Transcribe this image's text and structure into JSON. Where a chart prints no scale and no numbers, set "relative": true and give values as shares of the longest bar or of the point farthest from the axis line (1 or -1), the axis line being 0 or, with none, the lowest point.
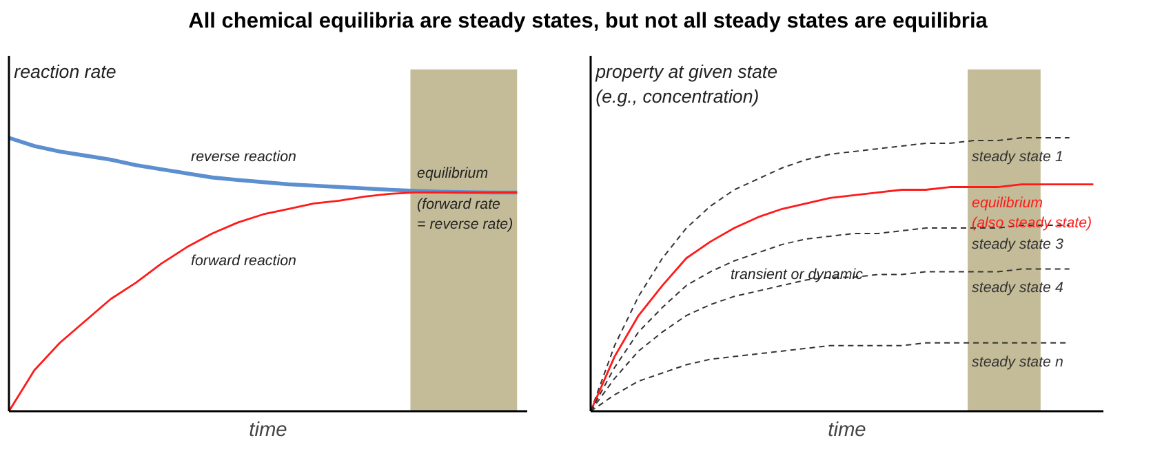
{
  "chart_data": [
    {
      "type": "line",
      "title": "All chemical equilibria are steady states, but not all steady states are equilibria",
      "xlabel": "time",
      "ylabel": "reaction rate",
      "relative": true,
      "tick_labels": false,
      "categories": [
        null,
        null,
        null,
        null,
        null,
        null,
        null,
        null,
        null,
        null,
        null,
        null,
        null,
        null,
        null,
        null,
        null,
        null,
        null,
        null,
        null
      ],
      "series": [
        {
          "color": "#5b8fd0",
          "line_style": "solid",
          "values": [
            1.0,
            0.97,
            0.95,
            0.935,
            0.92,
            0.9,
            0.885,
            0.87,
            0.855,
            0.846,
            0.838,
            0.83,
            0.825,
            0.82,
            0.815,
            0.81,
            0.806,
            0.803,
            0.801,
            0.8,
            0.8
          ]
        },
        {
          "color": "#ff1a1a",
          "line_style": "solid",
          "values": [
            0,
            0.15,
            0.25,
            0.33,
            0.41,
            0.47,
            0.54,
            0.6,
            0.65,
            0.69,
            0.72,
            0.74,
            0.76,
            0.77,
            0.785,
            0.795,
            0.8,
            0.8,
            0.8,
            0.8,
            0.8
          ]
        }
      ],
      "annotations": [
        "reverse reaction",
        "forward reaction",
        "equilibrium",
        "(forward rate\n= reverse rate)"
      ]
    },
    {
      "type": "line",
      "xlabel": "time",
      "ylabel": "property at given state\n(e.g., concentration)",
      "relative": true,
      "tick_labels": false,
      "categories": [
        null,
        null,
        null,
        null,
        null,
        null,
        null,
        null,
        null,
        null,
        null,
        null,
        null,
        null,
        null,
        null,
        null,
        null,
        null,
        null,
        null,
        null
      ],
      "series": [
        {
          "name": "steady state 1",
          "color": "#333333",
          "line_style": "dashed",
          "values": [
            0,
            0.24,
            0.42,
            0.56,
            0.67,
            0.75,
            0.81,
            0.85,
            0.89,
            0.92,
            0.94,
            0.95,
            0.96,
            0.97,
            0.98,
            0.98,
            0.99,
            0.99,
            1.0,
            1.0,
            1.0,
            null
          ]
        },
        {
          "name": "equilibrium\n(also steady state)",
          "color": "#ff1a1a",
          "line_style": "solid",
          "values": [
            0,
            0.2,
            0.35,
            0.46,
            0.56,
            0.62,
            0.67,
            0.71,
            0.74,
            0.76,
            0.78,
            0.79,
            0.8,
            0.81,
            0.81,
            0.82,
            0.82,
            0.82,
            0.83,
            0.83,
            0.83,
            0.83
          ]
        },
        {
          "name": "steady state 3",
          "color": "#333333",
          "line_style": "dashed",
          "values": [
            0,
            0.16,
            0.29,
            0.38,
            0.46,
            0.51,
            0.55,
            0.58,
            0.61,
            0.63,
            0.64,
            0.65,
            0.65,
            0.66,
            0.67,
            0.67,
            0.67,
            0.67,
            0.68,
            0.68,
            0.68,
            null
          ]
        },
        {
          "name": "steady state 4",
          "color": "#333333",
          "line_style": "dashed",
          "values": [
            0,
            0.12,
            0.22,
            0.29,
            0.35,
            0.39,
            0.42,
            0.44,
            0.46,
            0.48,
            0.49,
            0.49,
            0.5,
            0.5,
            0.51,
            0.51,
            0.51,
            0.51,
            0.52,
            0.52,
            0.52,
            null
          ]
        },
        {
          "name": "steady state n",
          "color": "#333333",
          "line_style": "dashed",
          "values": [
            0,
            0.06,
            0.11,
            0.14,
            0.17,
            0.19,
            0.2,
            0.21,
            0.22,
            0.23,
            0.24,
            0.24,
            0.24,
            0.24,
            0.25,
            0.25,
            0.25,
            0.25,
            0.25,
            0.25,
            0.25,
            null
          ]
        }
      ],
      "annotations": [
        "transient or dynamic"
      ]
    }
  ]
}
